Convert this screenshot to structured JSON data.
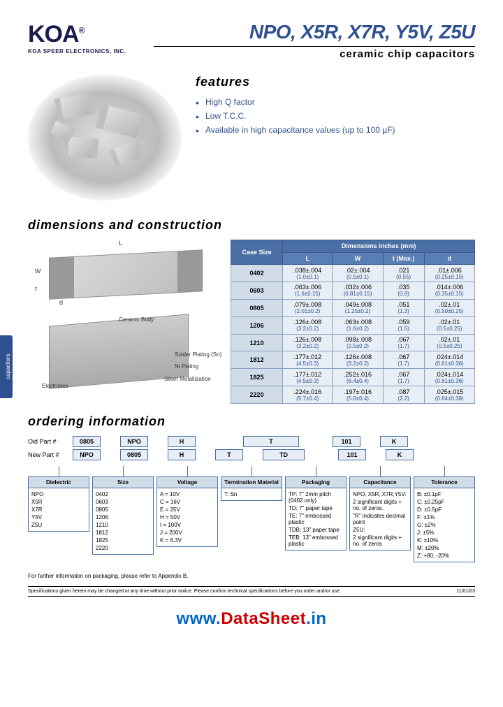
{
  "logo": {
    "text": "KOA",
    "reg": "®",
    "sub": "KOA SPEER ELECTRONICS, INC."
  },
  "title": {
    "main": "NPO, X5R, X7R, Y5V, Z5U",
    "sub": "ceramic chip capacitors"
  },
  "features": {
    "title": "features",
    "items": [
      "High Q factor",
      "Low T.C.C.",
      "Available in high capacitance values (up to 100 µF)"
    ]
  },
  "sidetab": "capacitors",
  "dim": {
    "title": "dimensions and construction",
    "labels": {
      "L": "L",
      "W": "W",
      "t": "t",
      "d": "d"
    },
    "anns": {
      "ceramic": "Ceramic Body",
      "solder": "Solder Plating (Sn)",
      "ni": "Ni Plating",
      "silver": "Silver Metallization",
      "elec": "Electrodes"
    },
    "table": {
      "head1": "Case Size",
      "head2": "Dimensions inches (mm)",
      "cols": [
        "L",
        "W",
        "t (Max.)",
        "d"
      ],
      "rows": [
        {
          "size": "0402",
          "L": ".038±.004",
          "Lm": "(1.0±0.1)",
          "W": ".02±.004",
          "Wm": "(0.5±0.1)",
          "t": ".021",
          "tm": "(0.55)",
          "d": ".01±.006",
          "dm": "(0.25±0.15)"
        },
        {
          "size": "0603",
          "L": ".063±.006",
          "Lm": "(1.6±0.15)",
          "W": ".032±.006",
          "Wm": "(0.81±0.15)",
          "t": ".035",
          "tm": "(0.9)",
          "d": ".014±.006",
          "dm": "(0.35±0.15)"
        },
        {
          "size": "0805",
          "L": ".079±.008",
          "Lm": "(2.01±0.2)",
          "W": ".049±.008",
          "Wm": "(1.25±0.2)",
          "t": ".051",
          "tm": "(1.3)",
          "d": ".02±.01",
          "dm": "(0.50±0.25)"
        },
        {
          "size": "1206",
          "L": ".126±.008",
          "Lm": "(3.2±0.2)",
          "W": ".063±.008",
          "Wm": "(1.6±0.2)",
          "t": ".059",
          "tm": "(1.5)",
          "d": ".02±.01",
          "dm": "(0.5±0.25)"
        },
        {
          "size": "1210",
          "L": ".126±.008",
          "Lm": "(3.2±0.2)",
          "W": ".098±.008",
          "Wm": "(2.5±0.2)",
          "t": ".067",
          "tm": "(1.7)",
          "d": ".02±.01",
          "dm": "(0.5±0.25)"
        },
        {
          "size": "1812",
          "L": ".177±.012",
          "Lm": "(4.5±0.3)",
          "W": ".126±.008",
          "Wm": "(3.2±0.2)",
          "t": ".067",
          "tm": "(1.7)",
          "d": ".024±.014",
          "dm": "(0.61±0.36)"
        },
        {
          "size": "1825",
          "L": ".177±.012",
          "Lm": "(4.5±0.3)",
          "W": ".252±.016",
          "Wm": "(6.4±0.4)",
          "t": ".067",
          "tm": "(1.7)",
          "d": ".024±.014",
          "dm": "(0.61±0.36)"
        },
        {
          "size": "2220",
          "L": ".224±.016",
          "Lm": "(5.7±0.4)",
          "W": ".197±.016",
          "Wm": "(5.0±0.4)",
          "t": ".087",
          "tm": "(2.2)",
          "d": ".025±.015",
          "dm": "(0.64±0.38)"
        }
      ]
    }
  },
  "order": {
    "title": "ordering information",
    "old_label": "Old Part #",
    "new_label": "New Part #",
    "old": [
      "0805",
      "NPO",
      "H",
      "",
      "T",
      "101",
      "K"
    ],
    "new": [
      "NPO",
      "0805",
      "H",
      "T",
      "TD",
      "101",
      "K"
    ],
    "cols": [
      {
        "head": "Dielectric",
        "items": [
          "NPO",
          "X5R",
          "X7R",
          "Y5V",
          "Z5U"
        ]
      },
      {
        "head": "Size",
        "items": [
          "0402",
          "0603",
          "0805",
          "1206",
          "1210",
          "1812",
          "1825",
          "2220"
        ]
      },
      {
        "head": "Voltage",
        "items": [
          "A = 10V",
          "C = 16V",
          "E = 25V",
          "H = 50V",
          "I = 100V",
          "J = 200V",
          "K = 6.3V"
        ]
      },
      {
        "head": "Termination Material",
        "items": [
          "T: Sn"
        ]
      },
      {
        "head": "Packaging",
        "items": [
          "TP: 7\" 2mm pitch (0402 only)",
          "TD: 7\" paper tape",
          "TE: 7\" embossed plastic",
          "TDB: 13\" paper tape",
          "TEB: 13\" embossed plastic"
        ]
      },
      {
        "head": "Capacitance",
        "items": [
          "NPO, X5R, X7R,Y5V:",
          "2 significant digits + no. of zeros.",
          "\"R\" indicates decimal point",
          "Z5U:",
          "2 significant digits + no. of zeros"
        ]
      },
      {
        "head": "Tolerance",
        "items": [
          "B: ±0.1pF",
          "C: ±0.25pF",
          "D: ±0.5pF",
          "F: ±1%",
          "G: ±2%",
          "J: ±5%",
          "K: ±10%",
          "M: ±20%",
          "Z: +80, -20%"
        ]
      }
    ],
    "note": "For further information on packaging, please refer to Appendix B."
  },
  "footer": {
    "spec": "Specifications given herein may be changed at any time without prior notice. Please confirm technical specifications before you order and/or use.",
    "date": "11/01/03"
  },
  "watermark": {
    "pre": "www.",
    "mid": "DataSheet",
    "suf": ".in"
  }
}
